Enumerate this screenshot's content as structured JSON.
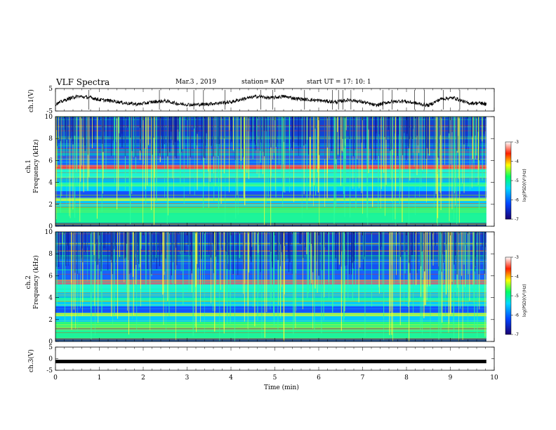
{
  "header": {
    "title": "VLF Spectra",
    "date": "Mar.3 , 2019",
    "station": "station= KAP",
    "start_ut": "start UT = 17: 10: 1"
  },
  "colors": {
    "trace": "#000000",
    "spectrogram_background": "#1c3fc8",
    "colormap": [
      "#0a0a8c",
      "#0033ff",
      "#00ccff",
      "#00ff88",
      "#ffff00",
      "#ff2200",
      "#ffffff"
    ]
  },
  "chart_data": [
    {
      "type": "line",
      "name": "ch1-waveform",
      "ylabel": "ch.1(V)",
      "xlim": [
        0,
        10
      ],
      "ylim": [
        -5,
        5
      ],
      "yticks": [
        "5",
        "-5"
      ],
      "note_values": "approximate signal level (V) vs time (min)",
      "x": [
        0,
        0.3,
        0.5,
        0.8,
        1.0,
        1.3,
        1.6,
        1.9,
        2.2,
        2.5,
        2.8,
        3.1,
        3.4,
        3.7,
        4.0,
        4.3,
        4.6,
        4.9,
        5.2,
        5.5,
        5.8,
        6.1,
        6.4,
        6.7,
        7.0,
        7.3,
        7.6,
        7.9,
        8.2,
        8.5,
        8.8,
        9.1,
        9.4,
        9.7,
        9.82
      ],
      "y": [
        -2.0,
        0.5,
        1.5,
        1.0,
        0.0,
        -0.5,
        -1.5,
        -2.0,
        -1.0,
        -0.5,
        -1.8,
        -2.2,
        -2.0,
        -1.5,
        -1.0,
        0.5,
        1.5,
        0.8,
        1.5,
        0.5,
        0.0,
        -0.5,
        -1.0,
        0.0,
        -1.0,
        -2.5,
        -1.0,
        -0.5,
        -1.5,
        -2.5,
        0.5,
        0.8,
        -1.5,
        -1.5,
        -2.0
      ]
    },
    {
      "type": "heatmap",
      "name": "ch1-spectrogram",
      "ylabel": "ch.1\nFrequency (kHz)",
      "xlim": [
        0,
        10
      ],
      "ylim": [
        0,
        10
      ],
      "yticks": [
        "0",
        "2",
        "4",
        "6",
        "8",
        "10"
      ],
      "colorbar": {
        "label": "log(PSD)(V²/Hz)",
        "range": [
          -7,
          -3
        ],
        "ticks": [
          "-3",
          "-4",
          "-5",
          "-6",
          "-7"
        ]
      }
    },
    {
      "type": "heatmap",
      "name": "ch2-spectrogram",
      "ylabel": "ch.2\nFrequency (kHz)",
      "xlim": [
        0,
        10
      ],
      "ylim": [
        0,
        10
      ],
      "yticks": [
        "0",
        "2",
        "4",
        "6",
        "8",
        "10"
      ],
      "colorbar": {
        "label": "log(PSD)(V²/Hz)",
        "range": [
          -7,
          -3
        ],
        "ticks": [
          "-3",
          "-4",
          "-5",
          "-6",
          "-7"
        ]
      }
    },
    {
      "type": "line",
      "name": "ch3-waveform",
      "ylabel": "ch.3(V)",
      "xlim": [
        0,
        10
      ],
      "ylim": [
        -5,
        5
      ],
      "yticks": [
        "5",
        "0",
        "-5"
      ],
      "x": [
        0,
        9.82
      ],
      "y": [
        -1.2,
        -1.2
      ]
    }
  ],
  "xaxis": {
    "label": "Time (min)",
    "ticks": [
      "0",
      "1",
      "2",
      "3",
      "4",
      "5",
      "6",
      "7",
      "8",
      "9",
      "10"
    ]
  }
}
